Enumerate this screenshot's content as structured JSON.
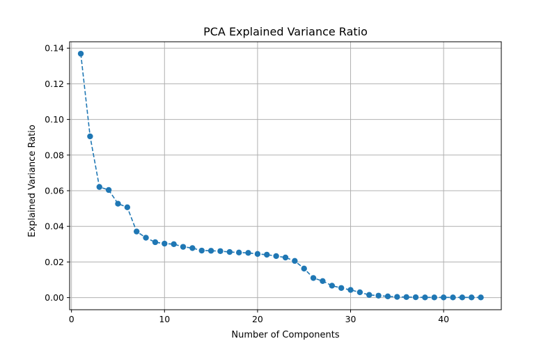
{
  "chart_data": {
    "type": "line",
    "title": "PCA Explained Variance Ratio",
    "xlabel": "Number of Components",
    "ylabel": "Explained Variance Ratio",
    "xlim": [
      -0.2,
      46.2
    ],
    "ylim": [
      -0.0068,
      0.1436
    ],
    "xticks": [
      0,
      10,
      20,
      30,
      40
    ],
    "xtick_labels": [
      "0",
      "10",
      "20",
      "30",
      "40"
    ],
    "yticks": [
      0.0,
      0.02,
      0.04,
      0.06,
      0.08,
      0.1,
      0.12,
      0.14
    ],
    "ytick_labels": [
      "0.00",
      "0.02",
      "0.04",
      "0.06",
      "0.08",
      "0.10",
      "0.12",
      "0.14"
    ],
    "grid": true,
    "line_style": "dashed",
    "marker": "circle",
    "color": "#1f77b4",
    "series": [
      {
        "x": [
          1,
          2,
          3,
          4,
          5,
          6,
          7,
          8,
          9,
          10,
          11,
          12,
          13,
          14,
          15,
          16,
          17,
          18,
          19,
          20,
          21,
          22,
          23,
          24,
          25,
          26,
          27,
          28,
          29,
          30,
          31,
          32,
          33,
          34,
          35,
          36,
          37,
          38,
          39,
          40,
          41,
          42,
          43,
          44
        ],
        "values": [
          0.1369,
          0.0905,
          0.0621,
          0.0604,
          0.0527,
          0.0507,
          0.0371,
          0.0336,
          0.0311,
          0.0303,
          0.03,
          0.0285,
          0.0278,
          0.0264,
          0.0263,
          0.0261,
          0.0256,
          0.0253,
          0.0251,
          0.0245,
          0.0241,
          0.0233,
          0.0225,
          0.0206,
          0.0163,
          0.011,
          0.0093,
          0.0067,
          0.0054,
          0.0043,
          0.003,
          0.0015,
          0.0011,
          0.0007,
          0.0004,
          0.0003,
          0.0002,
          0.0001,
          0.0001,
          0.0001,
          0.0001,
          0.0001,
          0.0001,
          0.0001
        ]
      }
    ]
  }
}
